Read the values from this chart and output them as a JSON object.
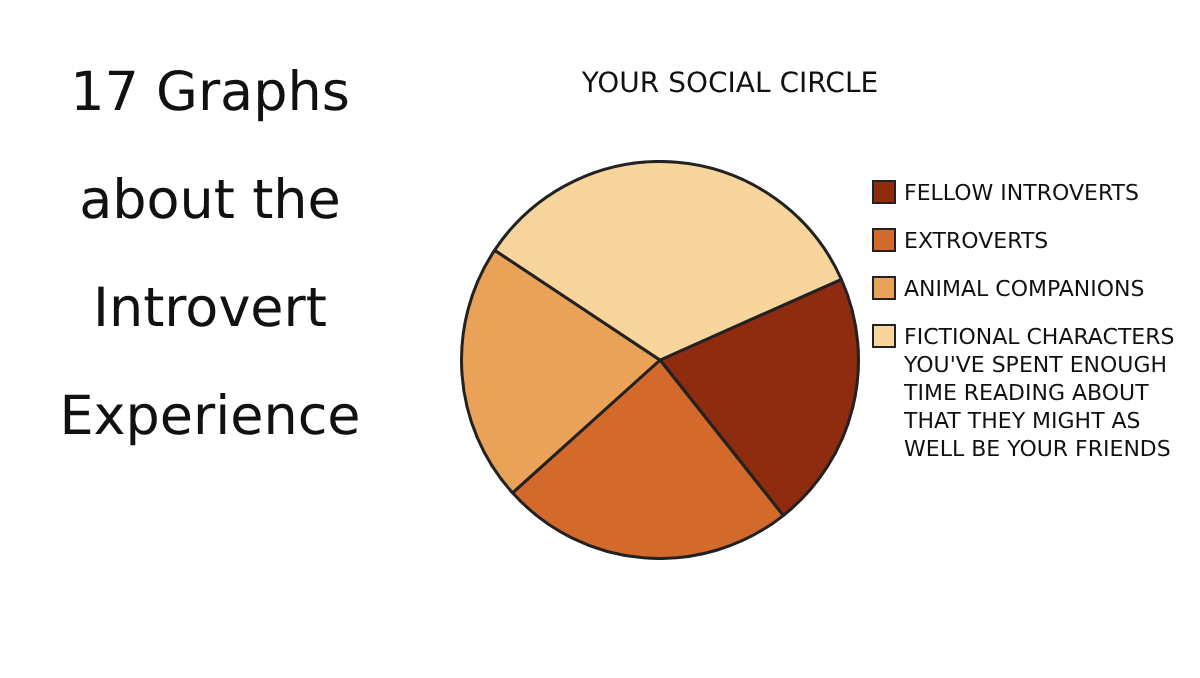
{
  "chart_data": {
    "type": "pie",
    "title": "17 Graphs about the Introvert Experience",
    "subtitle": "YOUR SOCIAL CIRCLE",
    "categories": [
      "FELLOW INTROVERTS",
      "EXTROVERTS",
      "ANIMAL COMPANIONS",
      "FICTIONAL CHARACTERS YOU'VE SPENT ENOUGH TIME READING ABOUT THAT THEY MIGHT AS WELL BE YOUR FRIENDS"
    ],
    "values": [
      21,
      24,
      21,
      34
    ],
    "colors": [
      "#8f2b0f",
      "#d3692b",
      "#e9a257",
      "#f8d59c"
    ],
    "legend": "right"
  }
}
